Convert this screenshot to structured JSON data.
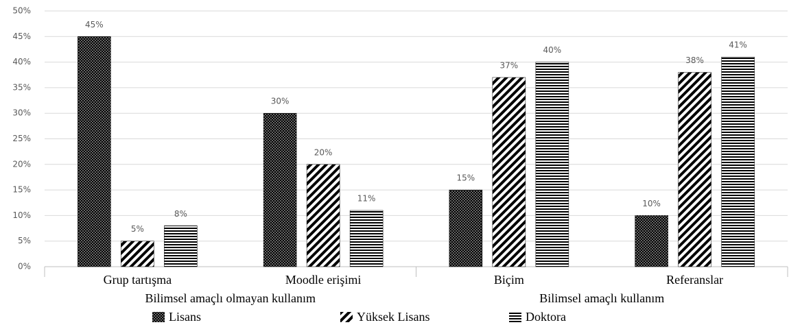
{
  "chart_data": {
    "type": "bar",
    "categories": [
      "Grup tartışma",
      "Moodle erişimi",
      "Biçim",
      "Referanslar"
    ],
    "group_labels": [
      "Bilimsel amaçlı olmayan kullanım",
      "Bilimsel amaçlı kullanım"
    ],
    "series": [
      {
        "name": "Lisans",
        "color": "#000000",
        "pattern": "dots",
        "values": [
          45,
          30,
          15,
          10
        ],
        "value_labels": [
          "45%",
          "30%",
          "15%",
          "10%"
        ]
      },
      {
        "name": "Yüksek Lisans",
        "color": "#000000",
        "pattern": "diagonal",
        "values": [
          5,
          20,
          37,
          38
        ],
        "value_labels": [
          "5%",
          "20%",
          "37%",
          "38%"
        ]
      },
      {
        "name": "Doktora",
        "color": "#000000",
        "pattern": "horizontal",
        "values": [
          8,
          11,
          40,
          41
        ],
        "value_labels": [
          "8%",
          "11%",
          "40%",
          "41%"
        ]
      }
    ],
    "ylim": [
      0,
      50
    ],
    "yticks": [
      {
        "value": 0,
        "label": "0%"
      },
      {
        "value": 5,
        "label": "5%"
      },
      {
        "value": 10,
        "label": "10%"
      },
      {
        "value": 15,
        "label": "15%"
      },
      {
        "value": 20,
        "label": "20%"
      },
      {
        "value": 25,
        "label": "25%"
      },
      {
        "value": 30,
        "label": "30%"
      },
      {
        "value": 35,
        "label": "35%"
      },
      {
        "value": 40,
        "label": "40%"
      },
      {
        "value": 45,
        "label": "45%"
      },
      {
        "value": 50,
        "label": "50%"
      }
    ],
    "grid": true,
    "legend": "bottom"
  }
}
